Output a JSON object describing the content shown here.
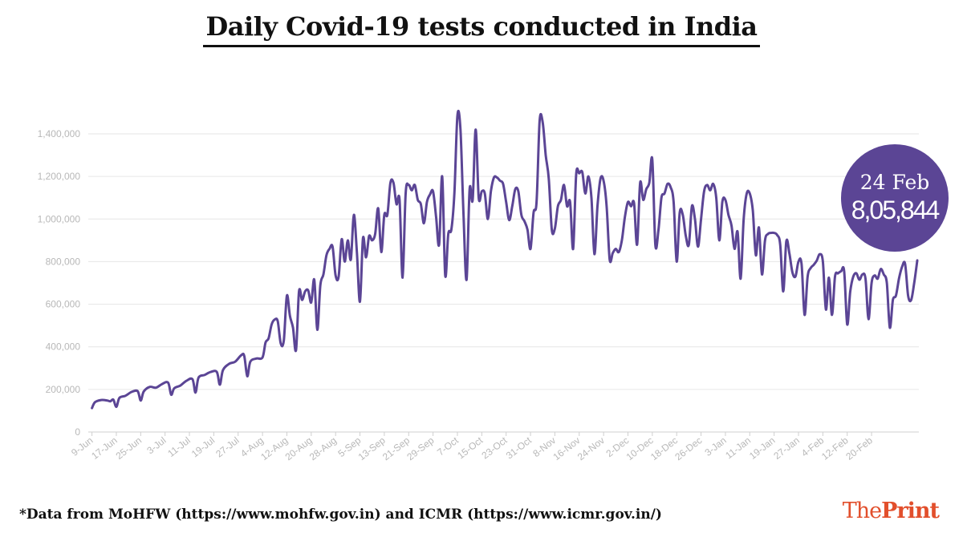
{
  "title": "Daily Covid-19 tests conducted in India",
  "footnote": "*Data from MoHFW (https://www.mohfw.gov.in) and ICMR (https://www.icmr.gov.in/)",
  "brand": {
    "the": "The",
    "print": "Print"
  },
  "callout": {
    "date": "24 Feb",
    "value": "8,05,844"
  },
  "colors": {
    "line": "#5b4595",
    "grid": "#e6e6e6",
    "axis_text": "#b8b8b8",
    "brand": "#e24f2c"
  },
  "chart_data": {
    "type": "line",
    "title": "Daily Covid-19 tests conducted in India",
    "xlabel": "",
    "ylabel": "",
    "ylim": [
      0,
      1500000
    ],
    "yticks": [
      0,
      200000,
      400000,
      600000,
      800000,
      1000000,
      1200000,
      1400000
    ],
    "ytick_labels": [
      "0",
      "200,000",
      "400,000",
      "600,000",
      "800,000",
      "1,000,000",
      "1,200,000",
      "1,400,000"
    ],
    "xtick_labels": [
      "9-Jun",
      "17-Jun",
      "25-Jun",
      "3-Jul",
      "11-Jul",
      "19-Jul",
      "27-Jul",
      "4-Aug",
      "12-Aug",
      "20-Aug",
      "28-Aug",
      "5-Sep",
      "13-Sep",
      "21-Sep",
      "29-Sep",
      "7-Oct",
      "15-Oct",
      "23-Oct",
      "31-Oct",
      "8-Nov",
      "16-Nov",
      "24-Nov",
      "2-Dec",
      "10-Dec",
      "18-Dec",
      "26-Dec",
      "3-Jan",
      "11-Jan",
      "19-Jan",
      "27-Jan",
      "4-Feb",
      "12-Feb",
      "20-Feb"
    ],
    "grid": true,
    "series": [
      {
        "name": "Daily tests",
        "start_date": "9-Jun",
        "end_date": "24-Feb",
        "note": "approximate keypoints (day index from 9-Jun, tests) read from the plotted line",
        "points": [
          [
            0,
            112000
          ],
          [
            1,
            140000
          ],
          [
            3,
            150000
          ],
          [
            5,
            148000
          ],
          [
            6,
            144000
          ],
          [
            7,
            152000
          ],
          [
            8,
            118000
          ],
          [
            9,
            160000
          ],
          [
            11,
            170000
          ],
          [
            13,
            188000
          ],
          [
            15,
            192000
          ],
          [
            16,
            148000
          ],
          [
            17,
            190000
          ],
          [
            19,
            212000
          ],
          [
            21,
            208000
          ],
          [
            23,
            225000
          ],
          [
            25,
            232000
          ],
          [
            26,
            175000
          ],
          [
            27,
            205000
          ],
          [
            29,
            218000
          ],
          [
            31,
            240000
          ],
          [
            33,
            248000
          ],
          [
            34,
            185000
          ],
          [
            35,
            255000
          ],
          [
            37,
            268000
          ],
          [
            39,
            282000
          ],
          [
            41,
            282000
          ],
          [
            42,
            222000
          ],
          [
            43,
            290000
          ],
          [
            45,
            320000
          ],
          [
            47,
            330000
          ],
          [
            49,
            360000
          ],
          [
            50,
            358000
          ],
          [
            51,
            262000
          ],
          [
            52,
            330000
          ],
          [
            54,
            345000
          ],
          [
            56,
            350000
          ],
          [
            57,
            420000
          ],
          [
            58,
            440000
          ],
          [
            59,
            505000
          ],
          [
            60,
            528000
          ],
          [
            61,
            520000
          ],
          [
            62,
            415000
          ],
          [
            63,
            430000
          ],
          [
            64,
            640000
          ],
          [
            65,
            545000
          ],
          [
            66,
            490000
          ],
          [
            67,
            385000
          ],
          [
            68,
            660000
          ],
          [
            69,
            620000
          ],
          [
            70,
            660000
          ],
          [
            71,
            665000
          ],
          [
            72,
            608000
          ],
          [
            73,
            715000
          ],
          [
            74,
            480000
          ],
          [
            75,
            690000
          ],
          [
            76,
            740000
          ],
          [
            77,
            830000
          ],
          [
            78,
            860000
          ],
          [
            79,
            870000
          ],
          [
            80,
            735000
          ],
          [
            81,
            730000
          ],
          [
            82,
            905000
          ],
          [
            83,
            800000
          ],
          [
            84,
            900000
          ],
          [
            85,
            810000
          ],
          [
            86,
            1020000
          ],
          [
            87,
            840000
          ],
          [
            88,
            612000
          ],
          [
            89,
            910000
          ],
          [
            90,
            820000
          ],
          [
            91,
            920000
          ],
          [
            92,
            900000
          ],
          [
            93,
            930000
          ],
          [
            94,
            1050000
          ],
          [
            95,
            845000
          ],
          [
            96,
            1020000
          ],
          [
            97,
            1020000
          ],
          [
            98,
            1170000
          ],
          [
            99,
            1170000
          ],
          [
            100,
            1070000
          ],
          [
            101,
            1090000
          ],
          [
            102,
            725000
          ],
          [
            103,
            1120000
          ],
          [
            104,
            1160000
          ],
          [
            105,
            1135000
          ],
          [
            106,
            1160000
          ],
          [
            107,
            1090000
          ],
          [
            108,
            1070000
          ],
          [
            109,
            980000
          ],
          [
            110,
            1080000
          ],
          [
            111,
            1115000
          ],
          [
            112,
            1130000
          ],
          [
            113,
            1010000
          ],
          [
            114,
            880000
          ],
          [
            115,
            1200000
          ],
          [
            116,
            735000
          ],
          [
            117,
            930000
          ],
          [
            118,
            950000
          ],
          [
            119,
            1120000
          ],
          [
            120,
            1485000
          ],
          [
            121,
            1420000
          ],
          [
            122,
            1020000
          ],
          [
            123,
            715000
          ],
          [
            124,
            1140000
          ],
          [
            125,
            1090000
          ],
          [
            126,
            1420000
          ],
          [
            127,
            1100000
          ],
          [
            128,
            1130000
          ],
          [
            129,
            1120000
          ],
          [
            130,
            1000000
          ],
          [
            131,
            1130000
          ],
          [
            132,
            1195000
          ],
          [
            133,
            1195000
          ],
          [
            134,
            1180000
          ],
          [
            135,
            1165000
          ],
          [
            136,
            1080000
          ],
          [
            137,
            995000
          ],
          [
            138,
            1060000
          ],
          [
            139,
            1140000
          ],
          [
            140,
            1130000
          ],
          [
            141,
            1020000
          ],
          [
            142,
            990000
          ],
          [
            143,
            950000
          ],
          [
            144,
            860000
          ],
          [
            145,
            1030000
          ],
          [
            146,
            1080000
          ],
          [
            147,
            1460000
          ],
          [
            148,
            1455000
          ],
          [
            149,
            1300000
          ],
          [
            150,
            1190000
          ],
          [
            151,
            950000
          ],
          [
            152,
            955000
          ],
          [
            153,
            1060000
          ],
          [
            154,
            1090000
          ],
          [
            155,
            1160000
          ],
          [
            156,
            1060000
          ],
          [
            157,
            1080000
          ],
          [
            158,
            860000
          ],
          [
            159,
            1210000
          ],
          [
            160,
            1215000
          ],
          [
            161,
            1220000
          ],
          [
            162,
            1120000
          ],
          [
            163,
            1200000
          ],
          [
            164,
            1100000
          ],
          [
            165,
            835000
          ],
          [
            166,
            1060000
          ],
          [
            167,
            1190000
          ],
          [
            168,
            1180000
          ],
          [
            169,
            1060000
          ],
          [
            170,
            810000
          ],
          [
            171,
            840000
          ],
          [
            172,
            860000
          ],
          [
            173,
            845000
          ],
          [
            174,
            900000
          ],
          [
            175,
            1010000
          ],
          [
            176,
            1080000
          ],
          [
            177,
            1060000
          ],
          [
            178,
            1075000
          ],
          [
            179,
            880000
          ],
          [
            180,
            1170000
          ],
          [
            181,
            1090000
          ],
          [
            182,
            1140000
          ],
          [
            183,
            1170000
          ],
          [
            184,
            1280000
          ],
          [
            185,
            880000
          ],
          [
            186,
            945000
          ],
          [
            187,
            1100000
          ],
          [
            188,
            1120000
          ],
          [
            189,
            1165000
          ],
          [
            190,
            1150000
          ],
          [
            191,
            1080000
          ],
          [
            192,
            800000
          ],
          [
            193,
            1030000
          ],
          [
            194,
            1020000
          ],
          [
            195,
            920000
          ],
          [
            196,
            880000
          ],
          [
            197,
            1060000
          ],
          [
            198,
            1000000
          ],
          [
            199,
            870000
          ],
          [
            200,
            1000000
          ],
          [
            201,
            1130000
          ],
          [
            202,
            1160000
          ],
          [
            203,
            1135000
          ],
          [
            204,
            1165000
          ],
          [
            205,
            1100000
          ],
          [
            206,
            900000
          ],
          [
            207,
            1080000
          ],
          [
            208,
            1090000
          ],
          [
            209,
            1020000
          ],
          [
            210,
            970000
          ],
          [
            211,
            860000
          ],
          [
            212,
            940000
          ],
          [
            213,
            720000
          ],
          [
            214,
            1000000
          ],
          [
            215,
            1120000
          ],
          [
            216,
            1120000
          ],
          [
            217,
            1040000
          ],
          [
            218,
            830000
          ],
          [
            219,
            960000
          ],
          [
            220,
            740000
          ],
          [
            221,
            900000
          ],
          [
            222,
            930000
          ],
          [
            223,
            935000
          ],
          [
            224,
            935000
          ],
          [
            225,
            925000
          ],
          [
            226,
            880000
          ],
          [
            227,
            660000
          ],
          [
            228,
            895000
          ],
          [
            229,
            840000
          ],
          [
            230,
            750000
          ],
          [
            231,
            730000
          ],
          [
            232,
            800000
          ],
          [
            233,
            790000
          ],
          [
            234,
            550000
          ],
          [
            235,
            730000
          ],
          [
            236,
            770000
          ],
          [
            237,
            785000
          ],
          [
            238,
            805000
          ],
          [
            239,
            835000
          ],
          [
            240,
            800000
          ],
          [
            241,
            575000
          ],
          [
            242,
            725000
          ],
          [
            243,
            550000
          ],
          [
            244,
            730000
          ],
          [
            245,
            745000
          ],
          [
            246,
            755000
          ],
          [
            247,
            755000
          ],
          [
            248,
            505000
          ],
          [
            249,
            660000
          ],
          [
            250,
            730000
          ],
          [
            251,
            745000
          ],
          [
            252,
            715000
          ],
          [
            253,
            740000
          ],
          [
            254,
            720000
          ],
          [
            255,
            530000
          ],
          [
            256,
            700000
          ],
          [
            257,
            735000
          ],
          [
            258,
            720000
          ],
          [
            259,
            765000
          ],
          [
            260,
            740000
          ],
          [
            261,
            700000
          ],
          [
            262,
            490000
          ],
          [
            263,
            620000
          ],
          [
            264,
            640000
          ],
          [
            265,
            720000
          ],
          [
            266,
            775000
          ],
          [
            267,
            790000
          ],
          [
            268,
            640000
          ],
          [
            269,
            620000
          ],
          [
            270,
            700000
          ],
          [
            271,
            805844
          ]
        ]
      }
    ]
  }
}
